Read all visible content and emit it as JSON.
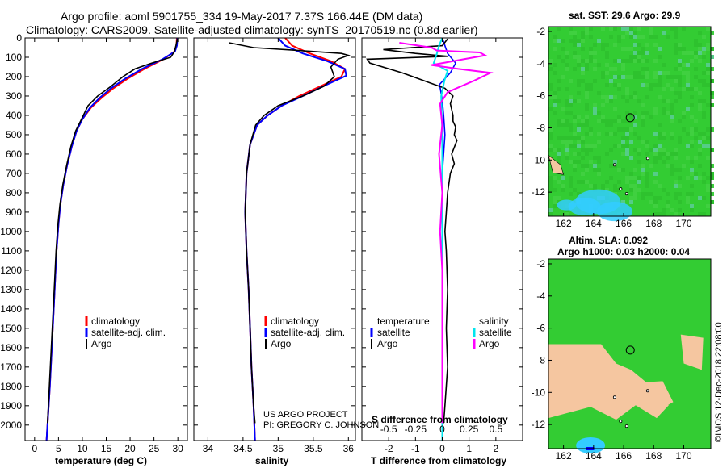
{
  "titles": {
    "line1": "Argo profile: aoml 5901755_334 19-May-2017 7.37S 166.44E (DM data)",
    "line2": "Climatology: CARS2009. Satellite-adjusted climatology: synTS_20170519.nc (0.8d earlier)"
  },
  "colors": {
    "climatology": "#ff0000",
    "satellite": "#0000ff",
    "argo": "#000000",
    "sal_satellite": "#00e5ee",
    "sal_argo": "#ff00ff",
    "map_green": "#33cc33",
    "map_land": "#f5c6a0",
    "map_deep": "#33ccff"
  },
  "credits": {
    "project": "US ARGO PROJECT",
    "pi": "PI: GREGORY C. JOHNSON",
    "stamp": "©IMOS 12-Dec-2018 22:08:00"
  },
  "chart_data": [
    {
      "type": "line",
      "name": "temperature",
      "xlabel": "temperature (deg C)",
      "ylabel": "",
      "xlim": [
        -2,
        32
      ],
      "ylim": [
        2080,
        0
      ],
      "xticks": [
        0,
        5,
        10,
        15,
        20,
        25,
        30
      ],
      "yticks": [
        0,
        100,
        200,
        300,
        400,
        500,
        600,
        700,
        800,
        900,
        1000,
        1100,
        1200,
        1300,
        1400,
        1500,
        1600,
        1700,
        1800,
        1900,
        2000
      ],
      "legend": [
        "climatology",
        "satellite-adj. clim.",
        "Argo"
      ],
      "series": [
        {
          "name": "climatology",
          "points": [
            [
              29.8,
              0
            ],
            [
              29.7,
              40
            ],
            [
              29.3,
              70
            ],
            [
              27,
              110
            ],
            [
              23,
              160
            ],
            [
              19.5,
              210
            ],
            [
              16.5,
              260
            ],
            [
              14,
              310
            ],
            [
              11.8,
              360
            ],
            [
              10,
              420
            ],
            [
              8.8,
              480
            ],
            [
              7.8,
              560
            ],
            [
              6.8,
              660
            ],
            [
              6,
              760
            ],
            [
              5.4,
              860
            ],
            [
              5,
              960
            ],
            [
              4.6,
              1100
            ],
            [
              4.3,
              1250
            ],
            [
              4,
              1400
            ],
            [
              3.6,
              1600
            ],
            [
              3.2,
              1800
            ],
            [
              2.7,
              2000
            ],
            [
              2.5,
              2080
            ]
          ]
        },
        {
          "name": "satellite-adj. clim.",
          "points": [
            [
              29.9,
              0
            ],
            [
              29.8,
              40
            ],
            [
              29.4,
              70
            ],
            [
              26.8,
              110
            ],
            [
              22.5,
              160
            ],
            [
              19,
              210
            ],
            [
              16,
              260
            ],
            [
              13.6,
              310
            ],
            [
              11.6,
              360
            ],
            [
              10,
              420
            ],
            [
              8.8,
              480
            ],
            [
              7.8,
              560
            ],
            [
              6.8,
              660
            ],
            [
              6,
              760
            ],
            [
              5.4,
              860
            ],
            [
              5,
              960
            ],
            [
              4.6,
              1100
            ],
            [
              4.3,
              1250
            ],
            [
              4,
              1400
            ],
            [
              3.6,
              1600
            ],
            [
              3.2,
              1800
            ],
            [
              2.7,
              2000
            ],
            [
              2.5,
              2080
            ]
          ]
        },
        {
          "name": "Argo",
          "points": [
            [
              29.9,
              5
            ],
            [
              29.6,
              40
            ],
            [
              29.3,
              70
            ],
            [
              28.5,
              100
            ],
            [
              24.5,
              130
            ],
            [
              21,
              160
            ],
            [
              18.5,
              200
            ],
            [
              16,
              250
            ],
            [
              13.2,
              300
            ],
            [
              11.2,
              350
            ],
            [
              9.8,
              420
            ],
            [
              8.6,
              480
            ],
            [
              7.6,
              560
            ],
            [
              6.7,
              660
            ],
            [
              5.9,
              760
            ],
            [
              5.3,
              860
            ],
            [
              4.9,
              960
            ],
            [
              4.5,
              1100
            ],
            [
              4.2,
              1250
            ],
            [
              3.9,
              1400
            ],
            [
              3.5,
              1600
            ],
            [
              3.1,
              1800
            ],
            [
              2.7,
              1990
            ]
          ]
        }
      ]
    },
    {
      "type": "line",
      "name": "salinity",
      "xlabel": "salinity",
      "ylabel": "",
      "xlim": [
        33.8,
        36.1
      ],
      "ylim": [
        2080,
        0
      ],
      "xticks": [
        34,
        34.5,
        35,
        35.5,
        36
      ],
      "legend": [
        "climatology",
        "satellite-adj. clim.",
        "Argo"
      ],
      "series": [
        {
          "name": "climatology",
          "points": [
            [
              35.1,
              0
            ],
            [
              35.2,
              40
            ],
            [
              35.45,
              80
            ],
            [
              35.75,
              120
            ],
            [
              35.95,
              160
            ],
            [
              35.9,
              200
            ],
            [
              35.6,
              250
            ],
            [
              35.3,
              300
            ],
            [
              35.05,
              350
            ],
            [
              34.85,
              400
            ],
            [
              34.7,
              450
            ],
            [
              34.6,
              550
            ],
            [
              34.55,
              700
            ],
            [
              34.53,
              900
            ],
            [
              34.55,
              1100
            ],
            [
              34.58,
              1300
            ],
            [
              34.6,
              1500
            ],
            [
              34.62,
              1700
            ],
            [
              34.65,
              1900
            ],
            [
              34.67,
              2080
            ]
          ]
        },
        {
          "name": "satellite-adj. clim.",
          "points": [
            [
              35.0,
              0
            ],
            [
              35.1,
              40
            ],
            [
              35.35,
              80
            ],
            [
              35.7,
              120
            ],
            [
              35.95,
              160
            ],
            [
              35.97,
              195
            ],
            [
              35.7,
              240
            ],
            [
              35.35,
              300
            ],
            [
              35.05,
              350
            ],
            [
              34.85,
              400
            ],
            [
              34.7,
              450
            ],
            [
              34.6,
              550
            ],
            [
              34.55,
              700
            ],
            [
              34.53,
              900
            ],
            [
              34.55,
              1100
            ],
            [
              34.58,
              1300
            ],
            [
              34.6,
              1500
            ],
            [
              34.62,
              1700
            ],
            [
              34.65,
              1900
            ],
            [
              34.67,
              2080
            ]
          ]
        },
        {
          "name": "Argo",
          "points": [
            [
              34.3,
              25
            ],
            [
              34.65,
              50
            ],
            [
              35.3,
              65
            ],
            [
              35.9,
              80
            ],
            [
              36.0,
              90
            ],
            [
              35.85,
              110
            ],
            [
              35.75,
              150
            ],
            [
              35.8,
              200
            ],
            [
              35.65,
              250
            ],
            [
              35.35,
              300
            ],
            [
              35.0,
              350
            ],
            [
              34.8,
              400
            ],
            [
              34.68,
              450
            ],
            [
              34.6,
              550
            ],
            [
              34.55,
              700
            ],
            [
              34.53,
              900
            ],
            [
              34.55,
              1100
            ],
            [
              34.58,
              1300
            ],
            [
              34.6,
              1500
            ],
            [
              34.62,
              1700
            ],
            [
              34.65,
              1900
            ],
            [
              34.67,
              1990
            ]
          ]
        }
      ]
    },
    {
      "type": "line",
      "name": "difference",
      "xlabel": "T difference from climatology",
      "x2label": "S difference from climatology",
      "xlim": [
        -3,
        3
      ],
      "x2lim": [
        -0.75,
        0.75
      ],
      "ylim": [
        2080,
        0
      ],
      "xticks": [
        -2,
        -1,
        0,
        1,
        2
      ],
      "x2ticks": [
        -0.5,
        -0.25,
        0,
        0.25,
        0.5
      ],
      "x2ticklabels": [
        "-0.5",
        "-0.25",
        "0",
        "0.25",
        "0.5"
      ],
      "legend_temperature": {
        "heading": "temperature",
        "items": [
          "satellite",
          "Argo"
        ]
      },
      "legend_salinity": {
        "heading": "salinity",
        "items": [
          "satellite",
          "Argo"
        ]
      },
      "series": [
        {
          "name": "T satellite",
          "axis": "T",
          "points": [
            [
              0.0,
              0
            ],
            [
              0.1,
              40
            ],
            [
              0.2,
              80
            ],
            [
              0.5,
              130
            ],
            [
              0.3,
              180
            ],
            [
              -0.1,
              240
            ],
            [
              0.0,
              320
            ],
            [
              0.05,
              400
            ],
            [
              0.1,
              500
            ],
            [
              0.0,
              700
            ],
            [
              0.0,
              900
            ],
            [
              0.0,
              1200
            ],
            [
              0.0,
              1500
            ],
            [
              0.0,
              1800
            ],
            [
              0.0,
              2080
            ]
          ]
        },
        {
          "name": "T Argo",
          "axis": "T",
          "points": [
            [
              0.2,
              5
            ],
            [
              0.0,
              40
            ],
            [
              -2.2,
              60
            ],
            [
              -1.0,
              80
            ],
            [
              0.2,
              95
            ],
            [
              -2.8,
              110
            ],
            [
              -2.7,
              130
            ],
            [
              -1.5,
              180
            ],
            [
              -0.5,
              230
            ],
            [
              0.1,
              260
            ],
            [
              0.4,
              300
            ],
            [
              0.3,
              340
            ],
            [
              0.4,
              400
            ],
            [
              0.4,
              430
            ],
            [
              0.5,
              460
            ],
            [
              0.45,
              500
            ],
            [
              0.55,
              530
            ],
            [
              0.35,
              600
            ],
            [
              0.45,
              650
            ],
            [
              0.3,
              700
            ],
            [
              0.2,
              800
            ],
            [
              0.15,
              900
            ],
            [
              0.1,
              1000
            ],
            [
              0.15,
              1100
            ],
            [
              0.2,
              1300
            ],
            [
              0.15,
              1500
            ],
            [
              0.2,
              1700
            ],
            [
              0.1,
              1900
            ],
            [
              0.05,
              1990
            ]
          ]
        },
        {
          "name": "S satellite",
          "axis": "S",
          "points": [
            [
              0.0,
              0
            ],
            [
              -0.03,
              40
            ],
            [
              -0.05,
              80
            ],
            [
              -0.08,
              130
            ],
            [
              0.05,
              170
            ],
            [
              0.02,
              220
            ],
            [
              -0.01,
              300
            ],
            [
              0.0,
              500
            ],
            [
              0.0,
              800
            ],
            [
              0.0,
              1100
            ],
            [
              0.0,
              1400
            ],
            [
              0.0,
              1800
            ],
            [
              0.0,
              2080
            ]
          ]
        },
        {
          "name": "S Argo",
          "axis": "S",
          "points": [
            [
              -0.4,
              25
            ],
            [
              -0.1,
              50
            ],
            [
              -0.05,
              65
            ],
            [
              0.35,
              75
            ],
            [
              0.4,
              90
            ],
            [
              0.2,
              110
            ],
            [
              -0.1,
              140
            ],
            [
              0.15,
              160
            ],
            [
              0.45,
              180
            ],
            [
              0.3,
              220
            ],
            [
              0.05,
              280
            ],
            [
              -0.02,
              340
            ],
            [
              0.0,
              450
            ],
            [
              -0.03,
              600
            ],
            [
              0.0,
              800
            ],
            [
              -0.02,
              1000
            ],
            [
              0.0,
              1200
            ],
            [
              0.0,
              1500
            ],
            [
              0.0,
              1800
            ],
            [
              0.0,
              1990
            ]
          ]
        }
      ]
    },
    {
      "type": "heatmap",
      "name": "sst-map",
      "title": "sat. SST: 29.6 Argo: 29.9",
      "xlim": [
        161,
        171.8
      ],
      "ylim": [
        -13.5,
        -1.7
      ],
      "xticks": [
        162,
        164,
        166,
        168,
        170
      ],
      "yticks": [
        -2,
        -4,
        -6,
        -8,
        -10,
        -12
      ],
      "marker": [
        166.44,
        -7.37
      ]
    },
    {
      "type": "heatmap",
      "name": "sla-map",
      "title": "Altim. SLA: 0.092",
      "subtitle": "Argo h1000: 0.03 h2000: 0.04",
      "xlim": [
        161,
        171.8
      ],
      "ylim": [
        -13.5,
        -1.7
      ],
      "xticks": [
        162,
        164,
        166,
        168,
        170
      ],
      "yticks": [
        -2,
        -4,
        -6,
        -8,
        -10,
        -12
      ],
      "marker": [
        166.44,
        -7.37
      ]
    }
  ]
}
